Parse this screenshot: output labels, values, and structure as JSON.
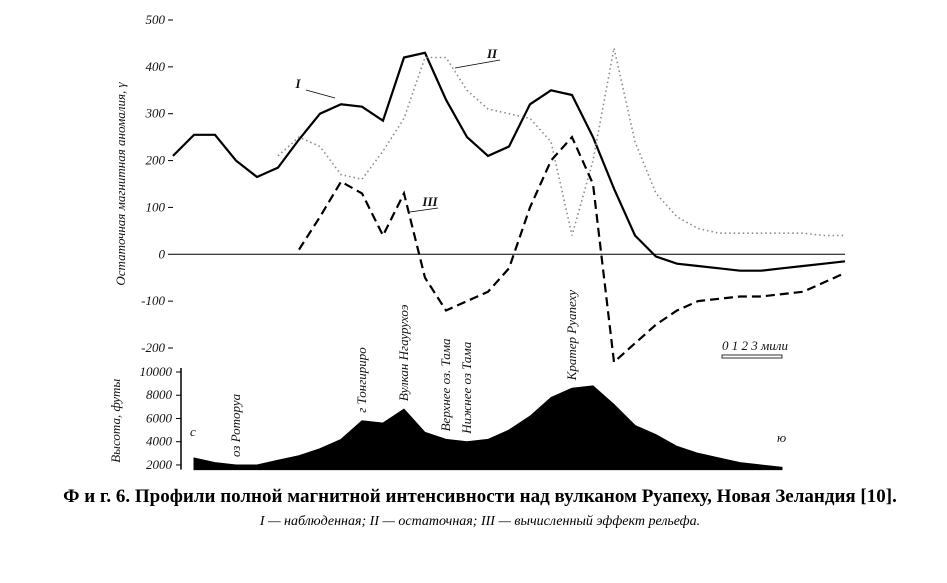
{
  "chart_data": [
    {
      "type": "line",
      "y_label": "Остаточная магнитная аномалия, γ",
      "categories": [
        null,
        null,
        null,
        null,
        null,
        null,
        null,
        null,
        null,
        null,
        null,
        null,
        null,
        null,
        null,
        null,
        null,
        null,
        null,
        null,
        null,
        null,
        null,
        null,
        null,
        null,
        null,
        null,
        null,
        null,
        null,
        null,
        null
      ],
      "series": [
        {
          "name": "I",
          "color": "#000000",
          "style": "solid",
          "values": [
            210,
            255,
            255,
            200,
            165,
            185,
            245,
            300,
            320,
            315,
            285,
            420,
            430,
            330,
            250,
            210,
            230,
            320,
            350,
            340,
            250,
            140,
            40,
            -5,
            -20,
            -25,
            -30,
            -35,
            -35,
            -30,
            -25,
            -20,
            -15
          ]
        },
        {
          "name": "II",
          "color": "#8a8a8a",
          "style": "dotted",
          "values": [
            null,
            null,
            null,
            null,
            null,
            210,
            250,
            230,
            170,
            160,
            220,
            290,
            420,
            420,
            350,
            310,
            300,
            290,
            240,
            40,
            200,
            440,
            240,
            130,
            80,
            55,
            45,
            45,
            45,
            45,
            45,
            40,
            40
          ]
        },
        {
          "name": "III",
          "color": "#000000",
          "style": "dashed",
          "values": [
            null,
            null,
            null,
            null,
            null,
            null,
            10,
            80,
            155,
            130,
            40,
            130,
            -50,
            -120,
            -100,
            -80,
            -30,
            100,
            200,
            250,
            150,
            -230,
            -190,
            -150,
            -120,
            -100,
            -95,
            -90,
            -90,
            -85,
            -80,
            -60,
            -40
          ]
        }
      ],
      "ylim": [
        -200,
        500
      ],
      "yticks": [
        -200,
        -100,
        0,
        100,
        200,
        300,
        400,
        500
      ],
      "zero_line": true,
      "scale_bar": "0 1 2 3 мили"
    },
    {
      "type": "area",
      "y_label": "Высота, футы",
      "color": "#000000",
      "categories": [
        null,
        null,
        null,
        "оз Роторуа",
        null,
        null,
        null,
        null,
        null,
        "г Тонгириро",
        null,
        "Вулкан Нгаурухоэ",
        null,
        "Верхнее оз. Тама",
        "Нижнее оз Тама",
        null,
        null,
        null,
        null,
        "Кратер Руапеху",
        null,
        null,
        null,
        null,
        null,
        null,
        null,
        null,
        null,
        null,
        null,
        null,
        null
      ],
      "values": [
        null,
        2600,
        2200,
        2000,
        2000,
        2400,
        2800,
        3400,
        4200,
        5800,
        5600,
        6800,
        4800,
        4200,
        4000,
        4200,
        5000,
        6200,
        7800,
        8600,
        8800,
        7200,
        5400,
        4600,
        3600,
        3000,
        2600,
        2200,
        2000,
        1800,
        null,
        null,
        null
      ],
      "ylim": [
        1600,
        10000
      ],
      "yticks": [
        2000,
        4000,
        6000,
        8000,
        10000
      ],
      "annotations": [
        "с",
        "ю"
      ]
    }
  ],
  "caption": {
    "title": "Ф и г. 6. Профили полной магнитной интенсивности над вулканом Руапеху, Новая Зеландия [10].",
    "legend": "I — наблюденная; II — остаточная; III — вычисленный эффект рельефа."
  }
}
